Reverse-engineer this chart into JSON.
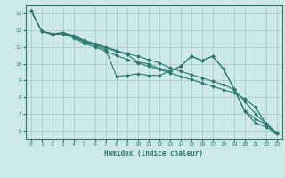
{
  "xlabel": "Humidex (Indice chaleur)",
  "ylabel": "",
  "bg_color": "#cce8e8",
  "grid_color": "#aacccc",
  "line_color": "#2a7a70",
  "xlim": [
    -0.5,
    23.5
  ],
  "ylim": [
    5.5,
    13.5
  ],
  "xticks": [
    0,
    1,
    2,
    3,
    4,
    5,
    6,
    7,
    8,
    9,
    10,
    11,
    12,
    13,
    14,
    15,
    16,
    17,
    18,
    19,
    20,
    21,
    22,
    23
  ],
  "yticks": [
    6,
    7,
    8,
    9,
    10,
    11,
    12,
    13
  ],
  "lines": [
    {
      "x": [
        0,
        1,
        2,
        3,
        4,
        5,
        6,
        7,
        8,
        9,
        10,
        11,
        12,
        13,
        14,
        15,
        16,
        17,
        18,
        19,
        20,
        21,
        22,
        23
      ],
      "y": [
        13.2,
        11.95,
        11.75,
        11.8,
        11.55,
        11.2,
        11.0,
        10.75,
        10.5,
        10.25,
        10.05,
        9.85,
        9.65,
        9.45,
        9.25,
        9.05,
        8.85,
        8.65,
        8.45,
        8.25,
        7.9,
        7.4,
        6.4,
        5.85
      ]
    },
    {
      "x": [
        0,
        1,
        2,
        3,
        4,
        5,
        6,
        7,
        8,
        9,
        10,
        11,
        12,
        13,
        14,
        15,
        16,
        17,
        18,
        19,
        20,
        21,
        22,
        23
      ],
      "y": [
        13.2,
        11.95,
        11.75,
        11.8,
        11.6,
        11.3,
        11.1,
        10.85,
        9.25,
        9.3,
        9.4,
        9.3,
        9.3,
        9.55,
        9.85,
        10.45,
        10.2,
        10.45,
        9.7,
        8.5,
        7.15,
        6.45,
        6.2,
        5.8
      ]
    },
    {
      "x": [
        0,
        1,
        2,
        3,
        4,
        5,
        6,
        7,
        8,
        9,
        10,
        11,
        12,
        13,
        14,
        15,
        16,
        17,
        18,
        19,
        20,
        21,
        22,
        23
      ],
      "y": [
        13.2,
        11.95,
        11.8,
        11.85,
        11.65,
        11.35,
        11.15,
        10.95,
        10.75,
        10.55,
        10.1,
        10.0,
        9.7,
        9.55,
        9.85,
        10.45,
        10.2,
        10.45,
        9.7,
        8.5,
        7.15,
        6.7,
        6.35,
        5.8
      ]
    },
    {
      "x": [
        0,
        1,
        2,
        3,
        4,
        5,
        6,
        7,
        8,
        9,
        10,
        11,
        12,
        13,
        14,
        15,
        16,
        17,
        18,
        19,
        20,
        21,
        22,
        23
      ],
      "y": [
        13.2,
        11.95,
        11.8,
        11.85,
        11.7,
        11.4,
        11.2,
        11.0,
        10.8,
        10.6,
        10.45,
        10.25,
        10.05,
        9.75,
        9.55,
        9.35,
        9.15,
        8.95,
        8.75,
        8.45,
        7.75,
        7.0,
        6.4,
        5.85
      ]
    }
  ]
}
